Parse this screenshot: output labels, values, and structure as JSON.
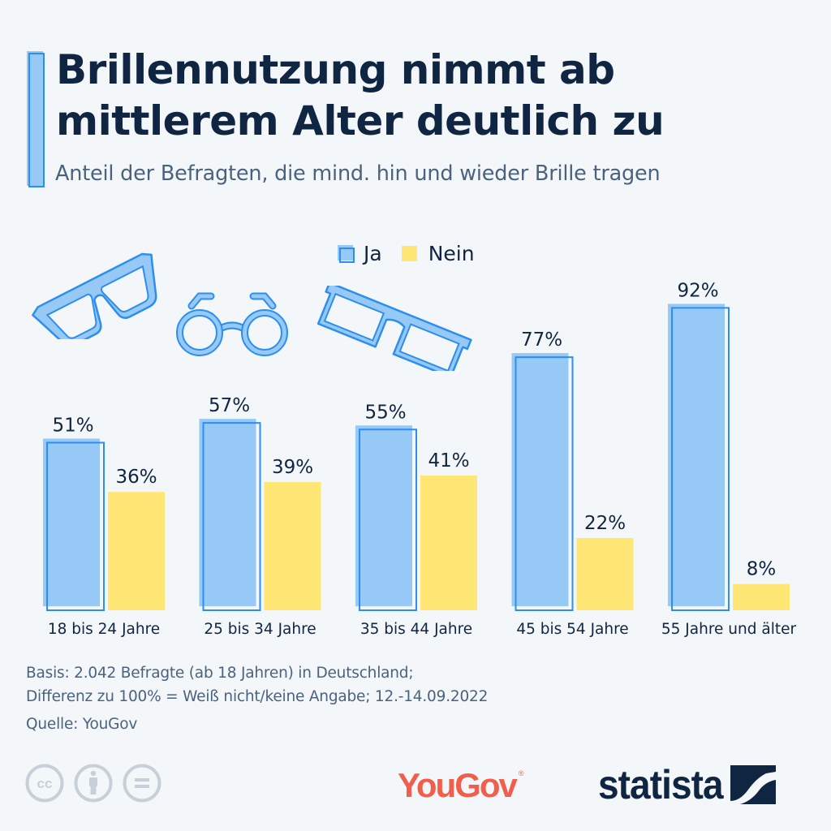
{
  "header": {
    "title": "Brillennutzung nimmt ab mittlerem Alter deutlich zu",
    "subtitle": "Anteil der Befragten, die mind. hin und wieder Brille tragen"
  },
  "legend": {
    "items": [
      {
        "label": "Ja",
        "color": "#97c9f6",
        "outline": "#2d8ef0"
      },
      {
        "label": "Nein",
        "color": "#ffe675"
      }
    ]
  },
  "decorations": {
    "icons": [
      "wayfarer-glasses-icon",
      "round-glasses-icon",
      "rectangular-glasses-icon"
    ],
    "icon_color": "#2d8ef0",
    "icon_fill": "#97c9f6"
  },
  "chart_data": {
    "type": "bar",
    "title": "Brillennutzung nimmt ab mittlerem Alter deutlich zu",
    "subtitle": "Anteil der Befragten, die mind. hin und wieder Brille tragen",
    "categories": [
      "18 bis 24 Jahre",
      "25 bis 34 Jahre",
      "35 bis 44 Jahre",
      "45 bis 54 Jahre",
      "55 Jahre und älter"
    ],
    "series": [
      {
        "name": "Ja",
        "values": [
          51,
          57,
          55,
          77,
          92
        ],
        "labels": [
          "51%",
          "57%",
          "55%",
          "77%",
          "92%"
        ],
        "color": "#97c9f6",
        "outline": "#2d8ef0"
      },
      {
        "name": "Nein",
        "values": [
          36,
          39,
          41,
          22,
          8
        ],
        "labels": [
          "36%",
          "39%",
          "41%",
          "22%",
          "8%"
        ],
        "color": "#ffe675"
      }
    ],
    "xlabel": "",
    "ylabel": "",
    "ylim": [
      0,
      100
    ],
    "unit": "%",
    "grid": false,
    "legend_position": "top-center"
  },
  "footer": {
    "notes": [
      "Basis: 2.042 Befragte (ab 18 Jahren) in Deutschland;",
      "Differenz zu 100% = Weiß nicht/keine Angabe; 12.-14.09.2022"
    ],
    "source": "Quelle: YouGov",
    "license_icons": [
      "cc-icon",
      "attribution-icon",
      "no-derivatives-icon"
    ],
    "partner_logo": "YouGov",
    "partner_logo_mark": "®",
    "brand_logo": "statista"
  }
}
